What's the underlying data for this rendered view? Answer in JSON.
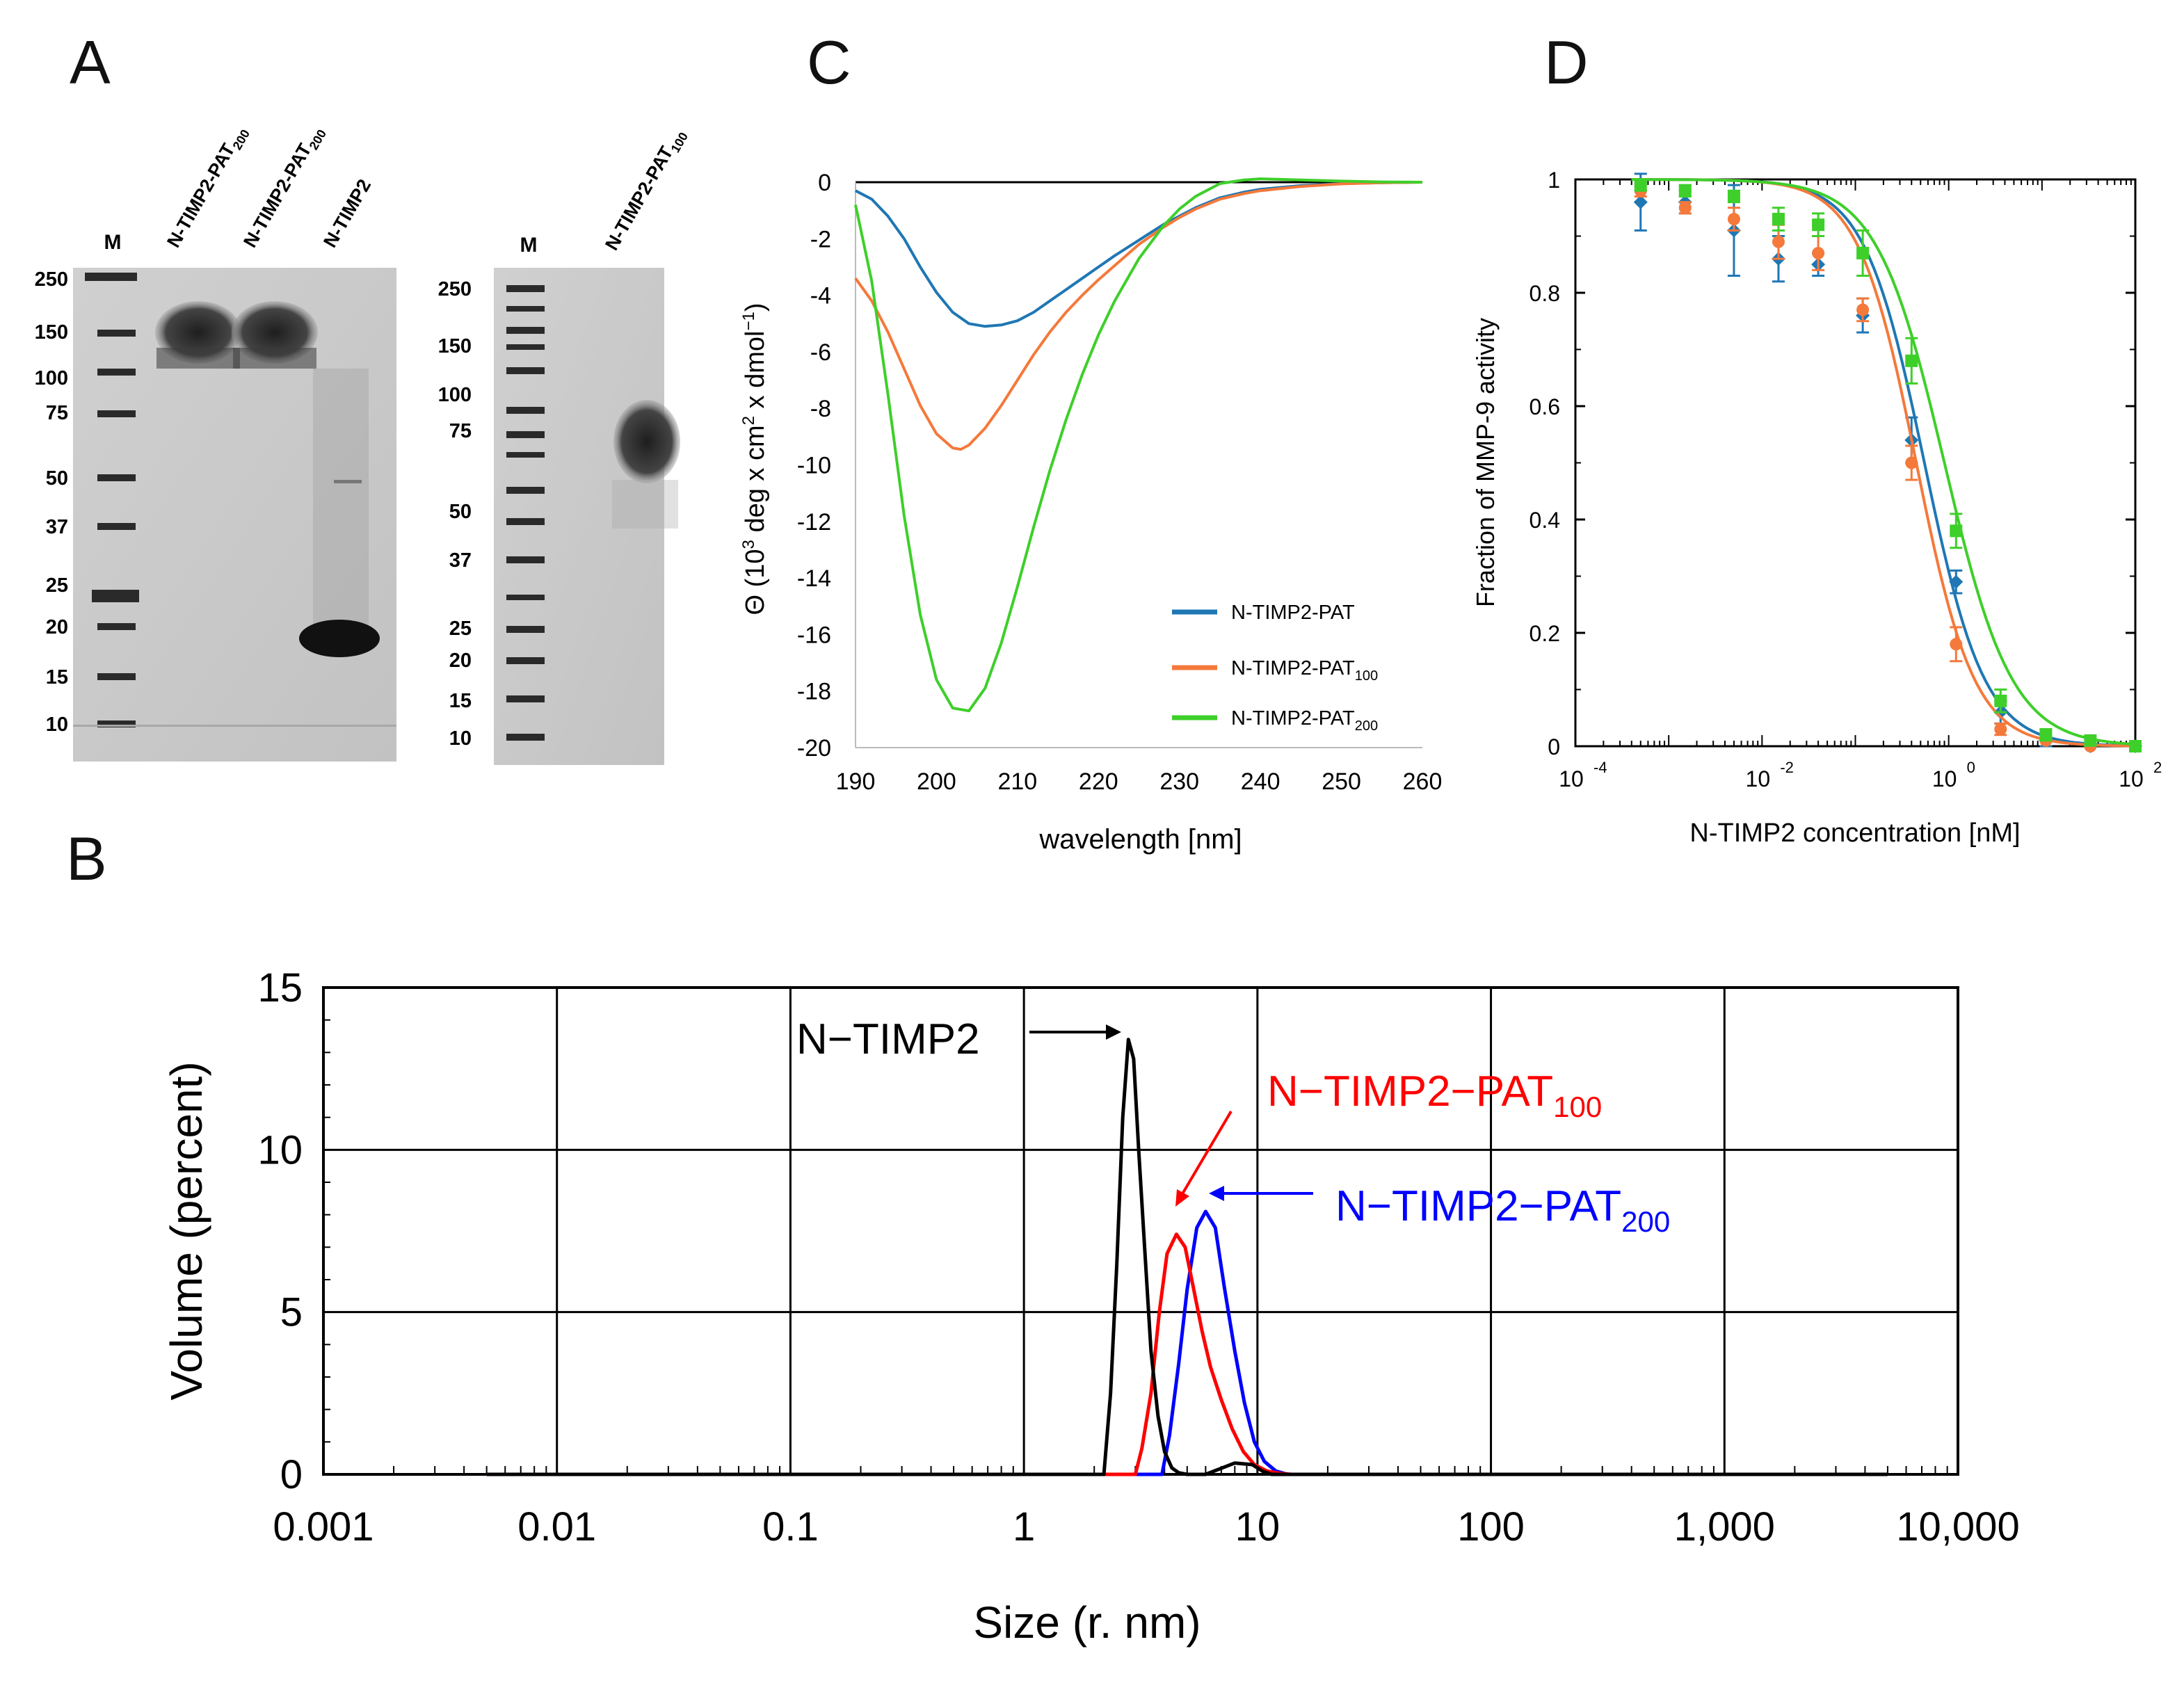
{
  "figure": {
    "panels": [
      "A",
      "B",
      "C",
      "D"
    ]
  },
  "gels": {
    "gel1": {
      "lanes": [
        {
          "name": "M",
          "base": "M",
          "sub": ""
        },
        {
          "name": "NTIMP2PAT200a",
          "base": "N-TIMP2-PAT",
          "sub": "200"
        },
        {
          "name": "NTIMP2PAT200b",
          "base": "N-TIMP2-PAT",
          "sub": "200"
        },
        {
          "name": "NTIMP2",
          "base": "N-TIMP2",
          "sub": ""
        }
      ],
      "markers": [
        "250",
        "150",
        "100",
        "75",
        "50",
        "37",
        "25",
        "20",
        "15",
        "10"
      ]
    },
    "gel2": {
      "lanes": [
        {
          "name": "M",
          "base": "M",
          "sub": ""
        },
        {
          "name": "NTIMP2PAT100",
          "base": "N-TIMP2-PAT",
          "sub": "100"
        }
      ],
      "markers": [
        "250",
        "150",
        "100",
        "75",
        "50",
        "37",
        "25",
        "20",
        "15",
        "10"
      ]
    }
  },
  "chart_data": [
    {
      "panel": "C",
      "type": "line",
      "xlabel": "wavelength [nm]",
      "ylabel_parts": [
        "Θ (10",
        "3",
        " deg x cm",
        "2",
        " x dmol",
        "−1",
        ")"
      ],
      "xlim": [
        190,
        260
      ],
      "ylim": [
        -20,
        0
      ],
      "xticks": [
        190,
        200,
        210,
        220,
        230,
        240,
        250,
        260
      ],
      "yticks": [
        0,
        -2,
        -4,
        -6,
        -8,
        -10,
        -12,
        -14,
        -16,
        -18,
        -20
      ],
      "legend_position": "bottom-right",
      "series": [
        {
          "name": "N-TIMP2-PAT",
          "label_base": "N-TIMP2-PAT",
          "label_sub": "",
          "color": "#1f77b4",
          "x": [
            190,
            192,
            194,
            196,
            198,
            200,
            202,
            204,
            206,
            208,
            210,
            212,
            214,
            216,
            218,
            220,
            222,
            225,
            228,
            230,
            232,
            235,
            238,
            240,
            245,
            250,
            255,
            260
          ],
          "y": [
            -0.3,
            -0.6,
            -1.2,
            -2.0,
            -3.0,
            -3.9,
            -4.6,
            -5.0,
            -5.1,
            -5.05,
            -4.9,
            -4.6,
            -4.2,
            -3.8,
            -3.4,
            -3.0,
            -2.6,
            -2.05,
            -1.5,
            -1.2,
            -0.9,
            -0.55,
            -0.35,
            -0.25,
            -0.12,
            -0.05,
            -0.02,
            0
          ]
        },
        {
          "name": "N-TIMP2-PAT100",
          "label_base": "N-TIMP2-PAT",
          "label_sub": "100",
          "color": "#f4793b",
          "x": [
            190,
            192,
            194,
            196,
            198,
            200,
            202,
            203,
            204,
            206,
            208,
            210,
            212,
            214,
            216,
            218,
            220,
            222,
            225,
            228,
            230,
            232,
            235,
            238,
            240,
            245,
            250,
            255,
            260
          ],
          "y": [
            -3.4,
            -4.2,
            -5.3,
            -6.6,
            -7.9,
            -8.9,
            -9.4,
            -9.45,
            -9.3,
            -8.7,
            -7.9,
            -7.0,
            -6.1,
            -5.3,
            -4.6,
            -4.0,
            -3.45,
            -2.95,
            -2.2,
            -1.6,
            -1.25,
            -0.95,
            -0.6,
            -0.4,
            -0.3,
            -0.15,
            -0.06,
            -0.02,
            0
          ]
        },
        {
          "name": "N-TIMP2-PAT200",
          "label_base": "N-TIMP2-PAT",
          "label_sub": "200",
          "color": "#3ecf2a",
          "x": [
            190,
            192,
            194,
            196,
            198,
            200,
            202,
            204,
            206,
            208,
            210,
            212,
            214,
            216,
            218,
            220,
            222,
            225,
            228,
            230,
            232,
            235,
            238,
            240,
            245,
            250,
            255,
            260
          ],
          "y": [
            -0.8,
            -3.5,
            -7.5,
            -11.8,
            -15.3,
            -17.6,
            -18.6,
            -18.7,
            -17.9,
            -16.3,
            -14.3,
            -12.2,
            -10.2,
            -8.4,
            -6.8,
            -5.4,
            -4.2,
            -2.7,
            -1.55,
            -0.95,
            -0.5,
            -0.05,
            0.08,
            0.12,
            0.08,
            0.04,
            0.01,
            0
          ]
        }
      ]
    },
    {
      "panel": "D",
      "type": "scatter",
      "xlabel": "N-TIMP2 concentration [nM]",
      "ylabel": "Fraction of MMP-9 activity",
      "xscale": "log",
      "xlim_exp": [
        -4,
        2
      ],
      "xtick_exps": [
        -4,
        -2,
        0,
        2
      ],
      "ylim": [
        0,
        1
      ],
      "yticks": [
        0,
        0.2,
        0.4,
        0.6,
        0.8,
        1
      ],
      "series": [
        {
          "name": "N-TIMP2-PAT",
          "color": "#1f77b4",
          "marker": "diamond",
          "ic50": 0.55,
          "hill": 1.35,
          "x": [
            0.0005,
            0.0015,
            0.005,
            0.015,
            0.04,
            0.12,
            0.4,
            1.2,
            3.6,
            11,
            33,
            100
          ],
          "y": [
            0.96,
            0.96,
            0.91,
            0.86,
            0.85,
            0.76,
            0.54,
            0.29,
            0.06,
            0.01,
            0.0,
            0.0
          ],
          "err": [
            0.05,
            0.02,
            0.08,
            0.04,
            0.02,
            0.03,
            0.04,
            0.02,
            0.02,
            0.01,
            0.0,
            0.0
          ]
        },
        {
          "name": "N-TIMP2-PAT100",
          "color": "#f4793b",
          "marker": "circle",
          "ic50": 0.45,
          "hill": 1.4,
          "x": [
            0.0005,
            0.0015,
            0.005,
            0.015,
            0.04,
            0.12,
            0.4,
            1.2,
            3.6,
            11,
            33,
            100
          ],
          "y": [
            0.98,
            0.95,
            0.93,
            0.89,
            0.87,
            0.77,
            0.5,
            0.18,
            0.03,
            0.01,
            0.0,
            0.0
          ],
          "err": [
            0.01,
            0.01,
            0.02,
            0.03,
            0.03,
            0.02,
            0.03,
            0.03,
            0.01,
            0.0,
            0.0,
            0.0
          ]
        },
        {
          "name": "N-TIMP2-PAT200",
          "color": "#3ecf2a",
          "marker": "square",
          "ic50": 0.9,
          "hill": 1.2,
          "x": [
            0.0005,
            0.0015,
            0.005,
            0.015,
            0.04,
            0.12,
            0.4,
            1.2,
            3.6,
            11,
            33,
            100
          ],
          "y": [
            0.99,
            0.98,
            0.97,
            0.93,
            0.92,
            0.87,
            0.68,
            0.38,
            0.08,
            0.02,
            0.01,
            0.0
          ],
          "err": [
            0.01,
            0.01,
            0.01,
            0.02,
            0.02,
            0.04,
            0.04,
            0.03,
            0.02,
            0.01,
            0.0,
            0.0
          ]
        }
      ]
    },
    {
      "panel": "B",
      "type": "line",
      "xlabel": "Size (r. nm)",
      "ylabel": "Volume (percent)",
      "xscale": "log",
      "xlim": [
        0.001,
        10000
      ],
      "xtick_labels": [
        "0.001",
        "0.01",
        "0.1",
        "1",
        "10",
        "100",
        "1,000",
        "10,000"
      ],
      "ylim": [
        0,
        15
      ],
      "yticks": [
        0,
        5,
        10,
        15
      ],
      "grid": true,
      "baseline_range": [
        0.005,
        5000
      ],
      "series": [
        {
          "name": "N-TIMP2",
          "label_base": "N−TIMP2",
          "label_sub": "",
          "color": "#000000",
          "x": [
            2.2,
            2.35,
            2.5,
            2.65,
            2.8,
            2.95,
            3.1,
            3.3,
            3.5,
            3.75,
            4.0,
            4.3,
            4.6,
            5.0,
            6.0,
            8.0,
            9.5,
            10.5,
            11.5
          ],
          "y": [
            0,
            2.5,
            6.5,
            11.0,
            13.4,
            12.8,
            10.0,
            6.8,
            3.8,
            1.8,
            0.7,
            0.2,
            0.05,
            0,
            0,
            0.35,
            0.3,
            0.1,
            0
          ]
        },
        {
          "name": "N-TIMP2-PAT100",
          "label_base": "N−TIMP2−PAT",
          "label_sub": "100",
          "color": "#ff0000",
          "x": [
            3.0,
            3.2,
            3.5,
            3.8,
            4.1,
            4.5,
            4.9,
            5.3,
            5.8,
            6.3,
            7.0,
            7.8,
            8.7,
            9.7,
            11,
            12.5,
            14
          ],
          "y": [
            0,
            0.8,
            2.5,
            5.0,
            6.8,
            7.4,
            7.0,
            5.8,
            4.4,
            3.3,
            2.3,
            1.4,
            0.7,
            0.3,
            0.1,
            0.03,
            0
          ]
        },
        {
          "name": "N-TIMP2-PAT200",
          "label_base": "N−TIMP2−PAT",
          "label_sub": "200",
          "color": "#0000ff",
          "x": [
            3.9,
            4.2,
            4.6,
            5.0,
            5.5,
            6.0,
            6.6,
            7.2,
            8.0,
            8.8,
            9.7,
            10.7,
            12,
            13.5
          ],
          "y": [
            0,
            1.2,
            3.4,
            5.7,
            7.6,
            8.1,
            7.6,
            5.8,
            3.8,
            2.2,
            1.0,
            0.4,
            0.1,
            0
          ]
        }
      ]
    }
  ]
}
